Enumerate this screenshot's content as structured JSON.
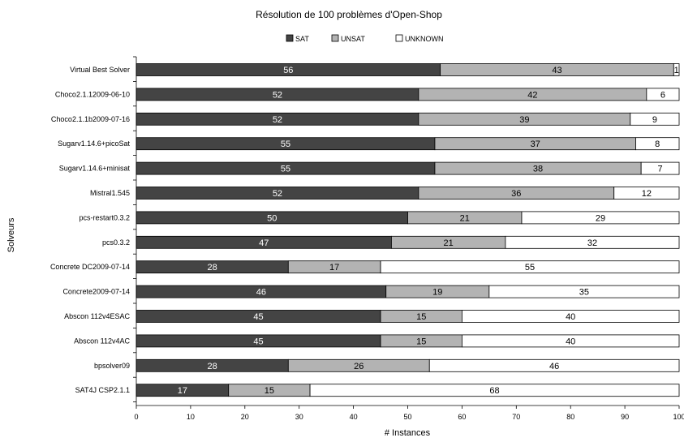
{
  "chart_data": {
    "type": "bar",
    "orientation": "horizontal",
    "stacked": true,
    "title": "Résolution de 100 problèmes d'Open-Shop",
    "xlabel": "# Instances",
    "ylabel": "Solveurs",
    "xlim": [
      0,
      100
    ],
    "xticks": [
      "0",
      "10",
      "20",
      "30",
      "40",
      "50",
      "60",
      "70",
      "80",
      "90",
      "100"
    ],
    "legend_position": "top",
    "grid": false,
    "categories": [
      "Virtual Best Solver",
      "Choco2.1.12009-06-10",
      "Choco2.1.1b2009-07-16",
      "Sugarv1.14.6+picoSat",
      "Sugarv1.14.6+minisat",
      "Mistral1.545",
      "pcs-restart0.3.2",
      "pcs0.3.2",
      "Concrete DC2009-07-14",
      "Concrete2009-07-14",
      "Abscon 112v4ESAC",
      "Abscon 112v4AC",
      "bpsolver09",
      "SAT4J CSP2.1.1"
    ],
    "series": [
      {
        "name": "SAT",
        "color": "#444444",
        "label_color": "#ffffff",
        "values": [
          56,
          52,
          52,
          55,
          55,
          52,
          50,
          47,
          28,
          46,
          45,
          45,
          28,
          17
        ]
      },
      {
        "name": "UNSAT",
        "color": "#b3b3b3",
        "label_color": "#000000",
        "values": [
          43,
          42,
          39,
          37,
          38,
          36,
          21,
          21,
          17,
          19,
          15,
          15,
          26,
          15
        ]
      },
      {
        "name": "UNKNOWN",
        "color": "#ffffff",
        "label_color": "#000000",
        "values": [
          1,
          6,
          9,
          8,
          7,
          12,
          29,
          32,
          55,
          35,
          40,
          40,
          46,
          68
        ]
      }
    ]
  }
}
